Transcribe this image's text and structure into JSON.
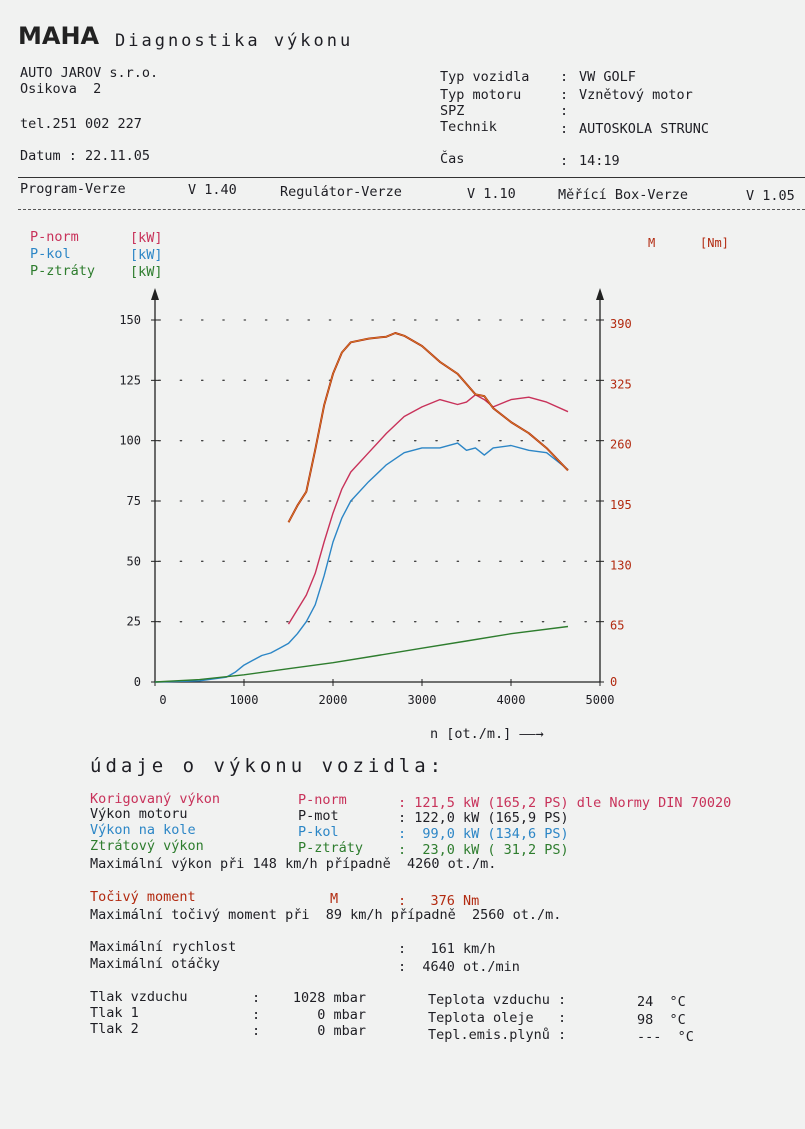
{
  "header": {
    "logo": "MAHA",
    "title": "Diagnostika výkonu"
  },
  "company": {
    "name": "AUTO JAROV s.r.o.",
    "street": "Osikova  2",
    "phone": "tel.251 002 227",
    "date": "Datum : 22.11.05"
  },
  "vehicle": {
    "rows": [
      {
        "label": "Typ vozidla",
        "sep": ":",
        "value": "VW GOLF"
      },
      {
        "label": "Typ motoru",
        "sep": ":",
        "value": "Vznětový motor"
      },
      {
        "label": "SPZ",
        "sep": ":",
        "value": ""
      },
      {
        "label": "Technik",
        "sep": ":",
        "value": "AUTOSKOLA STRUNC"
      },
      {
        "label": "Čas",
        "sep": ":",
        "value": "14:19"
      }
    ]
  },
  "versions": {
    "program_label": "Program-Verze",
    "program": "V 1.40",
    "regulator_label": "Regulátor-Verze",
    "regulator": "V 1.10",
    "box_label": "Měřící Box-Verze",
    "box": "V 1.05"
  },
  "chart_legend": {
    "left": [
      {
        "name": "P-norm",
        "unit": "[kW]",
        "color": "#c8325a"
      },
      {
        "name": "P-kol",
        "unit": "[kW]",
        "color": "#2c86c6"
      },
      {
        "name": "P-ztráty",
        "unit": "[kW]",
        "color": "#2e7d2e"
      }
    ],
    "right": {
      "name": "M",
      "unit": "[Nm]",
      "color": "#b22a10"
    }
  },
  "chart_data": {
    "type": "line",
    "xlabel": "n [ot./m.] ——→",
    "xlim": [
      0,
      5000
    ],
    "x_ticks": [
      "0",
      "1000",
      "2000",
      "3000",
      "4000",
      "5000"
    ],
    "ylim_left": [
      0,
      150
    ],
    "y_ticks_left": [
      "0",
      "25",
      "50",
      "75",
      "100",
      "125",
      "150"
    ],
    "ylim_right": [
      0,
      390
    ],
    "y_ticks_right": [
      "0",
      "65",
      "130",
      "195",
      "260",
      "325",
      "390"
    ],
    "grid": true,
    "series": [
      {
        "name": "P-norm",
        "axis": "left",
        "color": "#c8325a",
        "x": [
          1500,
          1600,
          1700,
          1800,
          1900,
          2000,
          2100,
          2200,
          2400,
          2600,
          2800,
          3000,
          3200,
          3400,
          3500,
          3600,
          3700,
          3800,
          4000,
          4200,
          4400,
          4640
        ],
        "y": [
          24,
          30,
          36,
          45,
          58,
          70,
          80,
          87,
          95,
          103,
          110,
          114,
          117,
          115,
          116,
          119,
          117,
          114,
          117,
          118,
          116,
          112
        ]
      },
      {
        "name": "P-kol",
        "axis": "left",
        "color": "#2c86c6",
        "x": [
          0,
          500,
          800,
          900,
          1000,
          1100,
          1200,
          1300,
          1400,
          1500,
          1600,
          1700,
          1800,
          1900,
          2000,
          2100,
          2200,
          2400,
          2600,
          2800,
          3000,
          3200,
          3400,
          3500,
          3600,
          3700,
          3800,
          4000,
          4200,
          4400,
          4640
        ],
        "y": [
          0,
          0.5,
          2,
          4,
          7,
          9,
          11,
          12,
          14,
          16,
          20,
          25,
          32,
          44,
          58,
          68,
          75,
          83,
          90,
          95,
          97,
          97,
          99,
          96,
          97,
          94,
          97,
          98,
          96,
          95,
          88
        ]
      },
      {
        "name": "P-ztráty",
        "axis": "left",
        "color": "#2e7d2e",
        "x": [
          0,
          500,
          1000,
          1500,
          2000,
          2500,
          3000,
          3500,
          4000,
          4640
        ],
        "y": [
          0,
          1,
          3,
          5.5,
          8,
          11,
          14,
          17,
          20,
          23
        ]
      },
      {
        "name": "M",
        "axis": "right",
        "color": "#b22a10",
        "x": [
          1500,
          1600,
          1700,
          1800,
          1900,
          2000,
          2100,
          2200,
          2400,
          2600,
          2700,
          2800,
          3000,
          3200,
          3400,
          3600,
          3700,
          3800,
          4000,
          4200,
          4400,
          4640
        ],
        "y": [
          172,
          190,
          205,
          250,
          298,
          332,
          355,
          366,
          370,
          372,
          376,
          373,
          362,
          345,
          332,
          310,
          308,
          295,
          280,
          268,
          252,
          228
        ]
      }
    ]
  },
  "results": {
    "title": "údaje o výkonu vozidla:",
    "rows": [
      {
        "label": "Korigovaný výkon",
        "code": "P-norm",
        "value": ": 121,5 kW (165,2 PS) dle Normy DIN 70020",
        "color": "#c8325a"
      },
      {
        "label": "Výkon motoru",
        "code": "P-mot",
        "value": ": 122,0 kW (165,9 PS)",
        "color": "#1e1e24"
      },
      {
        "label": "Výkon na kole",
        "code": "P-kol",
        "value": ":  99,0 kW (134,6 PS)",
        "color": "#2c86c6"
      },
      {
        "label": "Ztrátový výkon",
        "code": "P-ztráty",
        "value": ":  23,0 kW ( 31,2 PS)",
        "color": "#2e7d2e"
      }
    ],
    "max_power_line": "Maximální výkon při 148 km/h případně  4260 ot./m.",
    "torque_label": "Točivý moment",
    "torque_code": "M",
    "torque_value": ":   376 Nm",
    "max_torque_line": "Maximální točivý moment při  89 km/h případně  2560 ot./m.",
    "max_speed_label": "Maximální rychlost",
    "max_speed_value": ":   161 km/h",
    "max_rpm_label": "Maximální otáčky",
    "max_rpm_value": ":  4640 ot./min"
  },
  "conditions": {
    "left": [
      {
        "label": "Tlak vzduchu",
        "sep": ":",
        "value": "1028 mbar"
      },
      {
        "label": "Tlak 1",
        "sep": ":",
        "value": "0 mbar"
      },
      {
        "label": "Tlak 2",
        "sep": ":",
        "value": "0 mbar"
      }
    ],
    "right": [
      {
        "label": "Teplota vzduchu :",
        "value": "24  °C"
      },
      {
        "label": "Teplota oleje   :",
        "value": "98  °C"
      },
      {
        "label": "Tepl.emis.plynů :",
        "value": "---  °C"
      }
    ]
  }
}
